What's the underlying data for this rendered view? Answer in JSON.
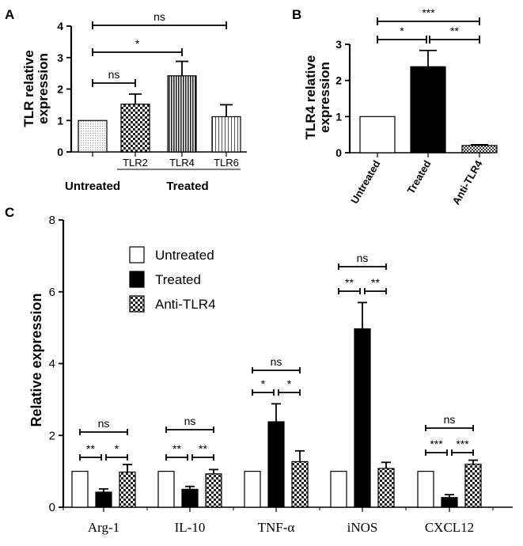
{
  "chart_data": [
    {
      "panel": "A",
      "type": "bar",
      "ylabel_lines": [
        "TLR relative",
        "expression"
      ],
      "ylim": [
        0,
        4
      ],
      "yticks": [
        "0",
        "1",
        "2",
        "3",
        "4"
      ],
      "categories": [
        "",
        "TLR2",
        "TLR4",
        "TLR6"
      ],
      "values": [
        1.0,
        1.52,
        2.42,
        1.12
      ],
      "errors": [
        0,
        0.32,
        0.46,
        0.38
      ],
      "fill_patterns": [
        "dots",
        "checker",
        "vlines",
        "vthin"
      ],
      "group_labels": [
        "Untreated",
        "Treated"
      ],
      "significance": [
        {
          "label": "ns",
          "from": 0,
          "to": 3
        },
        {
          "label": "*",
          "from": 0,
          "to": 2
        },
        {
          "label": "ns",
          "from": 0,
          "to": 1
        }
      ]
    },
    {
      "panel": "B",
      "type": "bar",
      "ylabel_lines": [
        "TLR4 relative",
        "expression"
      ],
      "ylim": [
        0,
        3
      ],
      "yticks": [
        "0",
        "1",
        "2",
        "3"
      ],
      "categories": [
        "Untreated",
        "Treated",
        "Anti-TLR4"
      ],
      "values": [
        1.0,
        2.38,
        0.2
      ],
      "errors": [
        0,
        0.45,
        0.02
      ],
      "fill_patterns": [
        "white",
        "black",
        "checker"
      ],
      "significance": [
        {
          "label": "***",
          "from": 0,
          "to": 2
        },
        {
          "label": "*",
          "from": 0,
          "to": 1
        },
        {
          "label": "**",
          "from": 1,
          "to": 2
        }
      ]
    },
    {
      "panel": "C",
      "type": "bar",
      "ylabel": "Relative expression",
      "ylim": [
        0,
        8
      ],
      "yticks": [
        "0",
        "2",
        "4",
        "6",
        "8"
      ],
      "categories": [
        "Arg-1",
        "IL-10",
        "TNF-α",
        "iNOS",
        "CXCL12"
      ],
      "series": [
        {
          "name": "Untreated",
          "fill": "white",
          "values": [
            1.0,
            1.0,
            1.0,
            1.0,
            1.0
          ],
          "errors": [
            0,
            0,
            0,
            0,
            0
          ]
        },
        {
          "name": "Treated",
          "fill": "black",
          "values": [
            0.42,
            0.5,
            2.38,
            4.97,
            0.27
          ],
          "errors": [
            0.09,
            0.08,
            0.5,
            0.73,
            0.08
          ]
        },
        {
          "name": "Anti-TLR4",
          "fill": "checker",
          "values": [
            0.98,
            0.93,
            1.27,
            1.08,
            1.2
          ],
          "errors": [
            0.21,
            0.12,
            0.3,
            0.17,
            0.11
          ]
        }
      ],
      "significance": [
        {
          "group": 0,
          "label": "ns",
          "from": 0,
          "to": 2
        },
        {
          "group": 0,
          "label": "**",
          "from": 0,
          "to": 1
        },
        {
          "group": 0,
          "label": "*",
          "from": 1,
          "to": 2
        },
        {
          "group": 1,
          "label": "ns",
          "from": 0,
          "to": 2
        },
        {
          "group": 1,
          "label": "**",
          "from": 0,
          "to": 1
        },
        {
          "group": 1,
          "label": "**",
          "from": 1,
          "to": 2
        },
        {
          "group": 2,
          "label": "ns",
          "from": 0,
          "to": 2
        },
        {
          "group": 2,
          "label": "*",
          "from": 0,
          "to": 1
        },
        {
          "group": 2,
          "label": "*",
          "from": 1,
          "to": 2
        },
        {
          "group": 3,
          "label": "ns",
          "from": 0,
          "to": 2
        },
        {
          "group": 3,
          "label": "**",
          "from": 0,
          "to": 1
        },
        {
          "group": 3,
          "label": "**",
          "from": 1,
          "to": 2
        },
        {
          "group": 4,
          "label": "ns",
          "from": 0,
          "to": 2
        },
        {
          "group": 4,
          "label": "***",
          "from": 0,
          "to": 1
        },
        {
          "group": 4,
          "label": "***",
          "from": 1,
          "to": 2
        }
      ],
      "legend_position": "top-left"
    }
  ]
}
